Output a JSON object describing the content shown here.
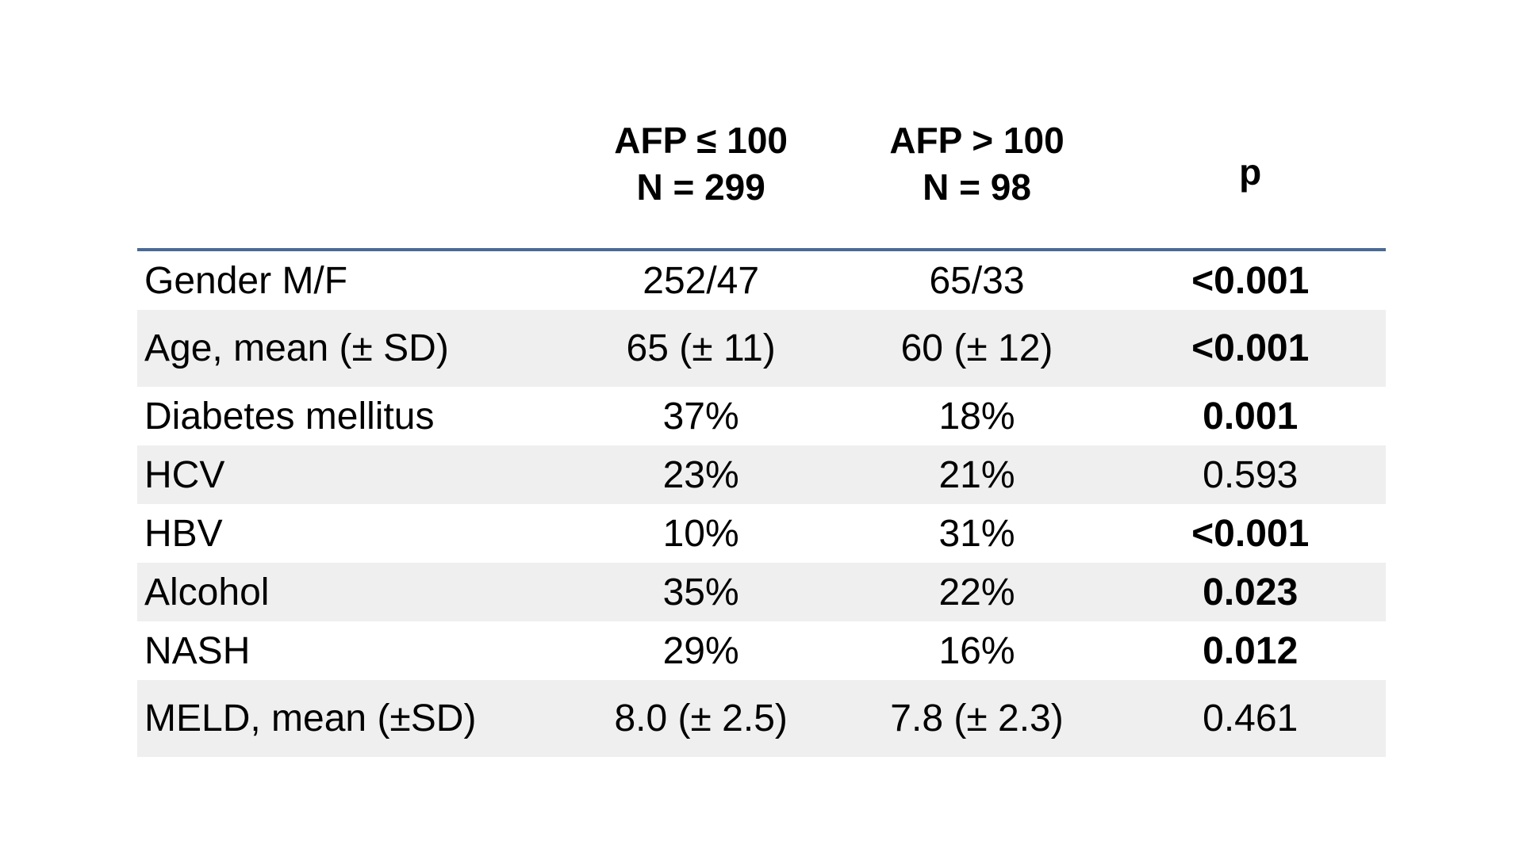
{
  "table": {
    "columns": [
      {
        "label": "",
        "sublabel": ""
      },
      {
        "label": "AFP ≤ 100",
        "sublabel": "N = 299"
      },
      {
        "label": "AFP > 100",
        "sublabel": "N = 98"
      },
      {
        "label": "p",
        "sublabel": ""
      }
    ],
    "rows": [
      {
        "label": "Gender M/F",
        "afp_low": "252/47",
        "afp_high": "65/33",
        "p": "<0.001",
        "p_bold": true,
        "tall": false
      },
      {
        "label": "Age, mean (± SD)",
        "afp_low": "65 (± 11)",
        "afp_high": "60 (± 12)",
        "p": "<0.001",
        "p_bold": true,
        "tall": true
      },
      {
        "label": "Diabetes mellitus",
        "afp_low": "37%",
        "afp_high": "18%",
        "p": "0.001",
        "p_bold": true,
        "tall": false
      },
      {
        "label": "HCV",
        "afp_low": "23%",
        "afp_high": "21%",
        "p": "0.593",
        "p_bold": false,
        "tall": false
      },
      {
        "label": "HBV",
        "afp_low": "10%",
        "afp_high": "31%",
        "p": "<0.001",
        "p_bold": true,
        "tall": false
      },
      {
        "label": "Alcohol",
        "afp_low": "35%",
        "afp_high": "22%",
        "p": "0.023",
        "p_bold": true,
        "tall": false
      },
      {
        "label": "NASH",
        "afp_low": "29%",
        "afp_high": "16%",
        "p": "0.012",
        "p_bold": true,
        "tall": false
      },
      {
        "label": "MELD, mean (±SD)",
        "afp_low": "8.0 (± 2.5)",
        "afp_high": "7.8 (± 2.3)",
        "p": "0.461",
        "p_bold": false,
        "tall": true
      }
    ],
    "colors": {
      "header_rule": "#4a6a96",
      "row_stripe": "#efefef",
      "text": "#000000"
    }
  }
}
